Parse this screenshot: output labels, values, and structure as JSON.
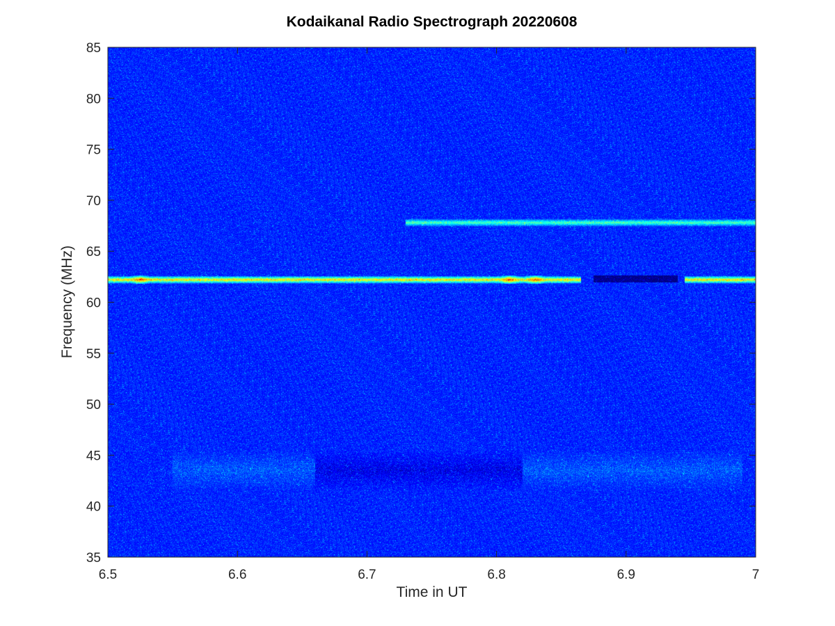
{
  "chart_data": {
    "type": "heatmap",
    "title": "Kodaikanal Radio Spectrograph  20220608",
    "xlabel": "Time in UT",
    "ylabel": "Frequency (MHz)",
    "xlim": [
      6.5,
      7
    ],
    "ylim": [
      35,
      85
    ],
    "xticks": [
      6.5,
      6.6,
      6.7,
      6.8,
      6.9,
      7
    ],
    "xtick_labels": [
      "6.5",
      "6.6",
      "6.7",
      "6.8",
      "6.9",
      "7"
    ],
    "yticks": [
      35,
      40,
      45,
      50,
      55,
      60,
      65,
      70,
      75,
      80,
      85
    ],
    "ytick_labels": [
      "35",
      "40",
      "45",
      "50",
      "55",
      "60",
      "65",
      "70",
      "75",
      "80",
      "85"
    ],
    "colormap": "jet",
    "background_color": "#1428c8",
    "features": [
      {
        "kind": "emission band",
        "freq_mhz": 62.2,
        "t_start": 6.5,
        "t_end": 7.0,
        "strength": 0.75,
        "gaps": [
          [
            6.865,
            6.945
          ]
        ],
        "peaks": [
          6.525,
          6.81,
          6.83
        ]
      },
      {
        "kind": "emission band",
        "freq_mhz": 67.8,
        "t_start": 6.73,
        "t_end": 7.0,
        "strength": 0.45
      },
      {
        "kind": "diffuse emission",
        "freq_mhz": [
          41.5,
          45.5
        ],
        "t_start": 6.55,
        "t_end": 6.99,
        "strength": 0.3
      },
      {
        "kind": "absorption dip",
        "freq_mhz": [
          41.5,
          45.5
        ],
        "t_start": 6.66,
        "t_end": 6.82,
        "strength": 0.3
      },
      {
        "kind": "absorption dip",
        "freq_mhz": 62.3,
        "t_start": 6.875,
        "t_end": 6.94,
        "strength": 0.5
      }
    ]
  }
}
